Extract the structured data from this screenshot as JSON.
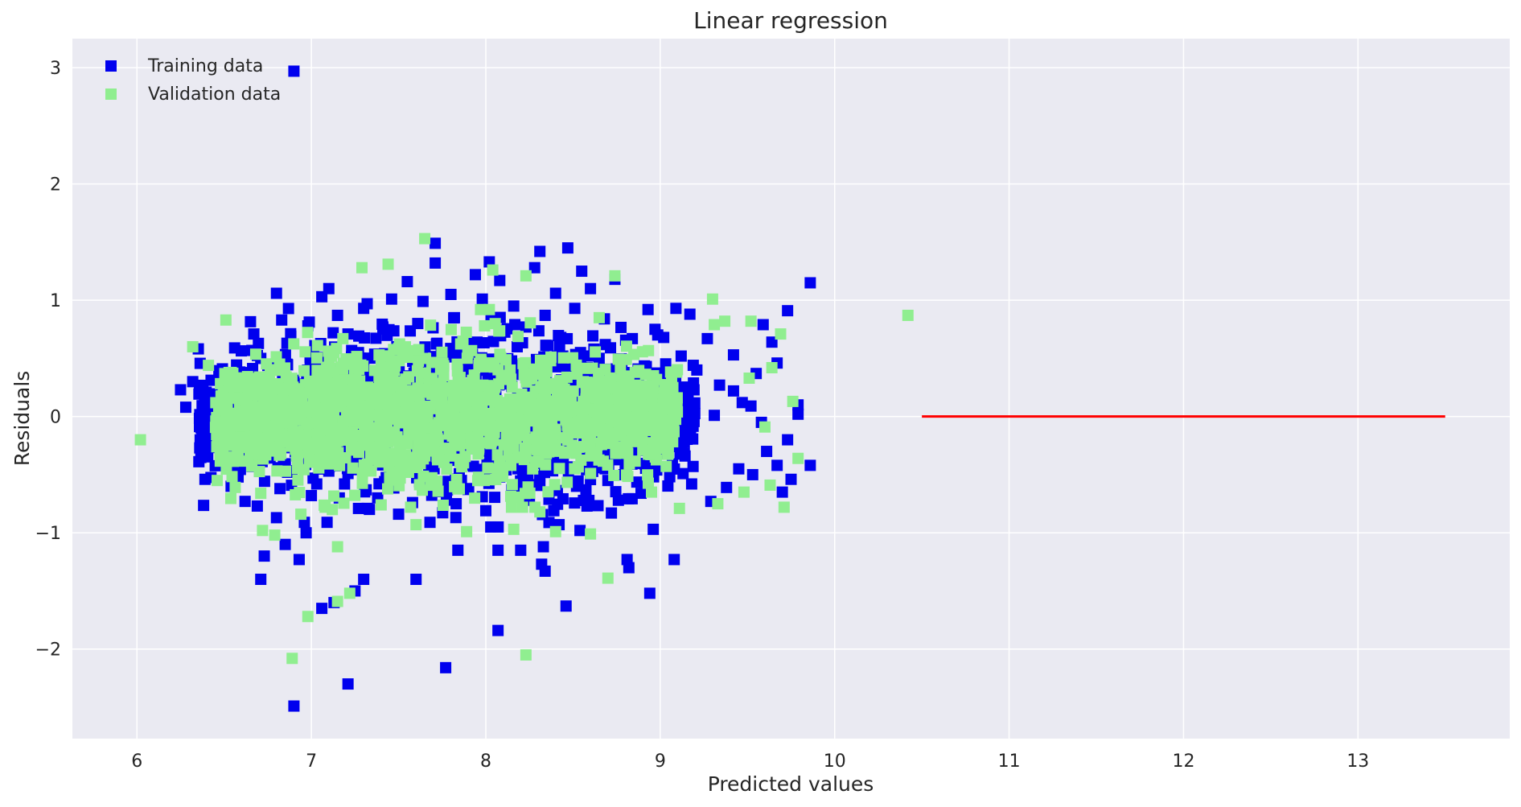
{
  "chart_data": {
    "type": "scatter",
    "title": "Linear regression",
    "xlabel": "Predicted values",
    "ylabel": "Residuals",
    "xlim": [
      5.63,
      13.87
    ],
    "ylim": [
      -2.77,
      3.25
    ],
    "xticks": [
      6,
      7,
      8,
      9,
      10,
      11,
      12,
      13
    ],
    "yticks": [
      -2,
      -1,
      0,
      1,
      2,
      3
    ],
    "ytick_labels": [
      "−2",
      "−1",
      "0",
      "1",
      "2",
      "3"
    ],
    "grid": true,
    "legend_position": "top-left",
    "colors": {
      "background": "#eaeaf2",
      "grid": "#ffffff",
      "training": "#0000ee",
      "validation": "#90ee90",
      "reference_line": "#ff0000"
    },
    "series": [
      {
        "name": "Training data",
        "marker": "square",
        "color": "#0000ee",
        "points": [
          [
            6.9,
            2.97
          ],
          [
            6.9,
            -2.49
          ],
          [
            7.21,
            -2.3
          ],
          [
            7.77,
            -2.16
          ],
          [
            8.07,
            -1.84
          ],
          [
            8.46,
            -1.63
          ],
          [
            7.06,
            -1.65
          ],
          [
            7.3,
            -1.4
          ],
          [
            7.6,
            -1.4
          ],
          [
            7.25,
            -1.5
          ],
          [
            7.13,
            -1.6
          ],
          [
            8.34,
            -1.33
          ],
          [
            8.32,
            -1.27
          ],
          [
            8.2,
            -1.15
          ],
          [
            8.33,
            -1.12
          ],
          [
            8.82,
            -1.3
          ],
          [
            8.94,
            -1.52
          ],
          [
            9.08,
            -1.23
          ],
          [
            8.81,
            -1.23
          ],
          [
            7.84,
            -1.15
          ],
          [
            8.07,
            -1.15
          ],
          [
            6.71,
            -1.4
          ],
          [
            6.73,
            -1.2
          ],
          [
            6.93,
            -1.23
          ],
          [
            6.97,
            -1.0
          ],
          [
            7.09,
            -0.91
          ],
          [
            6.85,
            -1.1
          ],
          [
            9.86,
            -0.42
          ],
          [
            9.75,
            -0.54
          ],
          [
            9.45,
            -0.45
          ],
          [
            8.47,
            1.45
          ],
          [
            8.31,
            1.42
          ],
          [
            7.71,
            1.49
          ],
          [
            7.71,
            1.32
          ],
          [
            8.02,
            1.33
          ],
          [
            8.28,
            1.28
          ],
          [
            8.55,
            1.25
          ],
          [
            9.86,
            1.15
          ],
          [
            9.73,
            0.91
          ],
          [
            9.09,
            0.93
          ],
          [
            9.17,
            0.88
          ],
          [
            8.93,
            0.92
          ],
          [
            9.27,
            0.67
          ],
          [
            9.42,
            0.53
          ],
          [
            9.59,
            0.79
          ],
          [
            9.67,
            0.46
          ],
          [
            9.79,
            0.02
          ],
          [
            9.73,
            -0.2
          ],
          [
            9.79,
            0.1
          ],
          [
            6.8,
            1.06
          ],
          [
            6.25,
            0.23
          ],
          [
            6.32,
            0.3
          ],
          [
            6.28,
            0.08
          ],
          [
            6.36,
            -0.27
          ],
          [
            6.39,
            -0.54
          ],
          [
            6.54,
            -0.6
          ],
          [
            6.62,
            -0.73
          ],
          [
            7.1,
            1.1
          ],
          [
            7.06,
            1.03
          ],
          [
            7.32,
            0.97
          ],
          [
            7.55,
            1.16
          ],
          [
            7.94,
            1.22
          ],
          [
            8.08,
            1.17
          ],
          [
            8.4,
            1.06
          ],
          [
            8.74,
            1.18
          ],
          [
            8.6,
            1.1
          ],
          [
            8.97,
            0.75
          ],
          [
            9.02,
            0.68
          ],
          [
            9.12,
            0.52
          ],
          [
            9.21,
            0.4
          ],
          [
            9.34,
            0.27
          ],
          [
            9.42,
            0.22
          ],
          [
            9.52,
            0.09
          ],
          [
            9.58,
            -0.05
          ],
          [
            9.61,
            -0.3
          ],
          [
            9.53,
            -0.5
          ],
          [
            9.38,
            -0.61
          ],
          [
            9.29,
            -0.73
          ],
          [
            9.18,
            -0.58
          ],
          [
            8.96,
            -0.97
          ],
          [
            8.72,
            -0.83
          ],
          [
            8.54,
            -0.98
          ],
          [
            8.42,
            -0.93
          ],
          [
            8.25,
            -0.72
          ],
          [
            8.0,
            -0.81
          ],
          [
            7.83,
            -0.75
          ],
          [
            7.68,
            -0.91
          ],
          [
            7.5,
            -0.84
          ],
          [
            7.32,
            -0.79
          ],
          [
            7.16,
            -0.7
          ],
          [
            6.96,
            -0.91
          ],
          [
            6.8,
            -0.87
          ],
          [
            6.69,
            -0.77
          ],
          [
            6.58,
            -0.52
          ],
          [
            6.48,
            -0.34
          ],
          [
            6.43,
            -0.11
          ],
          [
            6.44,
            0.17
          ],
          [
            6.49,
            0.41
          ],
          [
            6.56,
            0.59
          ],
          [
            6.67,
            0.71
          ],
          [
            6.83,
            0.83
          ],
          [
            6.98,
            0.78
          ],
          [
            7.15,
            0.87
          ],
          [
            7.3,
            0.93
          ],
          [
            7.46,
            1.01
          ],
          [
            7.64,
            0.99
          ],
          [
            7.8,
            1.05
          ],
          [
            7.98,
            1.01
          ],
          [
            8.16,
            0.95
          ],
          [
            8.34,
            0.87
          ],
          [
            8.51,
            0.93
          ],
          [
            8.68,
            0.84
          ],
          [
            8.84,
            0.67
          ],
          [
            8.92,
            0.43
          ],
          [
            9.02,
            0.21
          ],
          [
            9.06,
            -0.02
          ],
          [
            9.04,
            -0.25
          ],
          [
            8.98,
            -0.46
          ],
          [
            8.89,
            -0.66
          ],
          [
            8.76,
            -0.72
          ],
          [
            8.58,
            -0.77
          ],
          [
            8.39,
            -0.81
          ],
          [
            8.18,
            -0.64
          ],
          [
            7.98,
            -0.69
          ],
          [
            7.78,
            -0.63
          ],
          [
            7.58,
            -0.74
          ],
          [
            7.38,
            -0.7
          ],
          [
            7.19,
            -0.58
          ],
          [
            7.0,
            -0.68
          ],
          [
            6.82,
            -0.62
          ],
          [
            6.66,
            -0.43
          ],
          [
            6.57,
            -0.2
          ],
          [
            6.55,
            0.05
          ],
          [
            6.6,
            0.3
          ],
          [
            6.71,
            0.5
          ],
          [
            6.86,
            0.63
          ],
          [
            7.02,
            0.61
          ],
          [
            7.21,
            0.71
          ],
          [
            7.41,
            0.77
          ],
          [
            7.61,
            0.8
          ],
          [
            7.82,
            0.85
          ],
          [
            8.03,
            0.83
          ],
          [
            8.23,
            0.77
          ],
          [
            8.43,
            0.68
          ],
          [
            8.62,
            0.58
          ],
          [
            8.78,
            0.4
          ],
          [
            8.85,
            0.15
          ],
          [
            8.87,
            -0.12
          ],
          [
            8.82,
            -0.37
          ],
          [
            8.7,
            -0.55
          ],
          [
            8.52,
            -0.6
          ],
          [
            8.31,
            -0.58
          ],
          [
            8.08,
            -0.52
          ],
          [
            7.86,
            -0.55
          ],
          [
            7.64,
            -0.58
          ],
          [
            7.42,
            -0.56
          ],
          [
            7.21,
            -0.49
          ],
          [
            7.01,
            -0.53
          ],
          [
            6.84,
            -0.42
          ],
          [
            6.72,
            -0.25
          ],
          [
            6.68,
            0.05
          ],
          [
            6.73,
            0.3
          ],
          [
            6.86,
            0.45
          ],
          [
            7.05,
            0.48
          ],
          [
            7.27,
            0.55
          ],
          [
            7.49,
            0.6
          ],
          [
            7.72,
            0.63
          ],
          [
            7.95,
            0.64
          ],
          [
            8.18,
            0.6
          ],
          [
            8.41,
            0.52
          ],
          [
            8.61,
            0.38
          ],
          [
            8.71,
            0.17
          ],
          [
            8.73,
            -0.1
          ],
          [
            8.63,
            -0.33
          ],
          [
            9.7,
            -0.65
          ],
          [
            9.31,
            0.01
          ],
          [
            9.47,
            0.12
          ],
          [
            9.55,
            0.37
          ],
          [
            9.64,
            0.64
          ],
          [
            9.67,
            -0.42
          ]
        ]
      },
      {
        "name": "Validation data",
        "marker": "square",
        "color": "#90ee90",
        "points": [
          [
            6.02,
            -0.2
          ],
          [
            10.42,
            0.87
          ],
          [
            6.89,
            -2.08
          ],
          [
            8.23,
            -2.05
          ],
          [
            6.98,
            -1.72
          ],
          [
            7.15,
            -1.59
          ],
          [
            7.22,
            -1.52
          ],
          [
            8.7,
            -1.39
          ],
          [
            7.15,
            -1.12
          ],
          [
            7.65,
            1.53
          ],
          [
            7.29,
            1.28
          ],
          [
            7.44,
            1.31
          ],
          [
            8.04,
            1.26
          ],
          [
            8.23,
            1.21
          ],
          [
            8.74,
            1.21
          ],
          [
            8.65,
            0.85
          ],
          [
            9.3,
            1.01
          ],
          [
            9.37,
            0.82
          ],
          [
            9.31,
            0.79
          ],
          [
            9.52,
            0.82
          ],
          [
            9.69,
            0.71
          ],
          [
            9.64,
            0.42
          ],
          [
            9.76,
            0.13
          ],
          [
            9.79,
            -0.36
          ],
          [
            9.63,
            -0.59
          ],
          [
            9.71,
            -0.78
          ],
          [
            9.6,
            -0.09
          ],
          [
            9.51,
            0.33
          ],
          [
            6.32,
            0.6
          ],
          [
            6.41,
            0.44
          ],
          [
            6.51,
            0.83
          ],
          [
            6.72,
            -0.98
          ],
          [
            6.79,
            -1.02
          ],
          [
            6.46,
            -0.55
          ],
          [
            7.6,
            -0.93
          ],
          [
            7.89,
            -0.99
          ],
          [
            8.16,
            -0.97
          ],
          [
            8.31,
            -0.82
          ],
          [
            8.4,
            -0.99
          ],
          [
            8.6,
            -1.01
          ],
          [
            9.48,
            -0.65
          ],
          [
            9.33,
            -0.75
          ],
          [
            9.11,
            -0.79
          ],
          [
            8.95,
            -0.65
          ],
          [
            7.4,
            -0.76
          ],
          [
            7.12,
            -0.8
          ],
          [
            6.94,
            -0.84
          ],
          [
            6.71,
            -0.66
          ]
        ],
        "cloud": {
          "description": "dense cluster",
          "x_range": [
            6.45,
            9.1
          ],
          "y_range": [
            -0.78,
            0.92
          ]
        }
      }
    ],
    "reference_line": {
      "x": [
        10.5,
        13.5
      ],
      "y": [
        0,
        0
      ],
      "color": "#ff0000"
    }
  },
  "legend": {
    "training_label": "Training data",
    "validation_label": "Validation data"
  }
}
